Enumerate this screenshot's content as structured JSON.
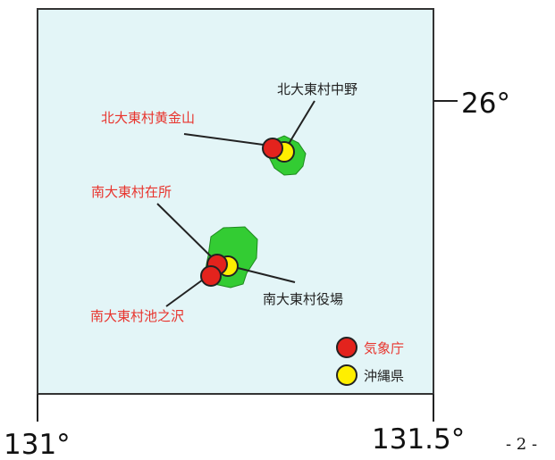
{
  "header_fragment": "・・・・・・・・・・・・・",
  "coordinates": {
    "lat_label": "26°",
    "lon_left": "131°",
    "lon_right": "131.5°"
  },
  "stations": {
    "kita_kogane": "北大東村黄金山",
    "kita_nakano": "北大東村中野",
    "minami_zaisho": "南大東村在所",
    "minami_yakuba": "南大東村役場",
    "minami_ikenosawa": "南大東村池之沢"
  },
  "legend": {
    "jma": "気象庁",
    "okinawa": "沖縄県"
  },
  "page_number": "- 2 -",
  "colors": {
    "sea": "#e3f5f7",
    "island": "#33cc33",
    "jma_marker": "#e3231d",
    "okinawa_marker": "#ffef00",
    "label_red": "#e8342d"
  }
}
